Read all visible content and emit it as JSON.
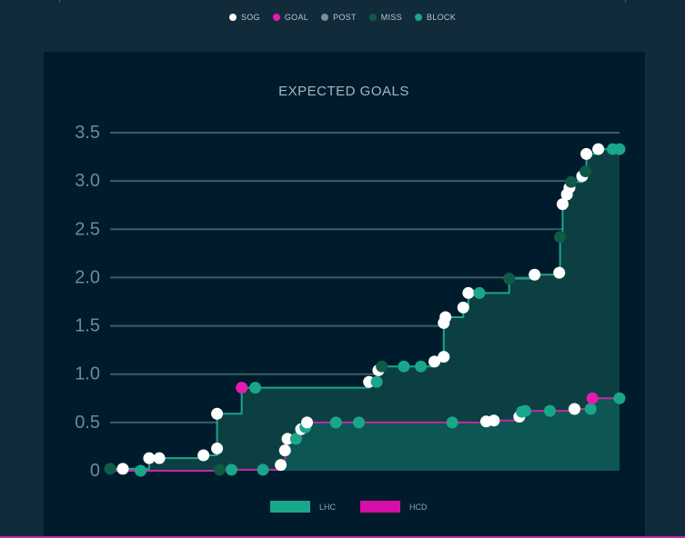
{
  "legend": {
    "items": [
      {
        "label": "SOG",
        "color": "#ffffff"
      },
      {
        "label": "GOAL",
        "color": "#e619b0"
      },
      {
        "label": "POST",
        "color": "#7a8f99"
      },
      {
        "label": "MISS",
        "color": "#0f5a46"
      },
      {
        "label": "BLOCK",
        "color": "#1aa68a"
      }
    ]
  },
  "chart_data": {
    "type": "line",
    "title": "EXPECTED GOALS",
    "xlabel": "",
    "ylabel": "",
    "xlim": [
      0,
      60
    ],
    "ylim": [
      0,
      3.5
    ],
    "yticks": [
      0,
      0.5,
      1.0,
      1.5,
      2.0,
      2.5,
      3.0,
      3.5
    ],
    "ytick_labels": [
      "0",
      "0.5",
      "1.0",
      "1.5",
      "2.0",
      "2.5",
      "3.0",
      "3.5"
    ],
    "grid": true,
    "series": [
      {
        "name": "LHC",
        "color": "#1aa68a",
        "fill": "#0c3f42",
        "points": [
          {
            "x": 0.0,
            "y": 0.02,
            "t": "MISS"
          },
          {
            "x": 1.5,
            "y": 0.02,
            "t": "SOG"
          },
          {
            "x": 4.6,
            "y": 0.13,
            "t": "SOG"
          },
          {
            "x": 5.8,
            "y": 0.13,
            "t": "SOG"
          },
          {
            "x": 11.0,
            "y": 0.16,
            "t": "SOG"
          },
          {
            "x": 12.6,
            "y": 0.23,
            "t": "SOG"
          },
          {
            "x": 12.6,
            "y": 0.59,
            "t": "SOG"
          },
          {
            "x": 15.5,
            "y": 0.86,
            "t": "GOAL"
          },
          {
            "x": 17.1,
            "y": 0.86,
            "t": "BLOCK"
          },
          {
            "x": 30.5,
            "y": 0.92,
            "t": "SOG"
          },
          {
            "x": 31.4,
            "y": 0.92,
            "t": "BLOCK"
          },
          {
            "x": 31.6,
            "y": 1.04,
            "t": "SOG"
          },
          {
            "x": 32.0,
            "y": 1.08,
            "t": "MISS"
          },
          {
            "x": 34.6,
            "y": 1.08,
            "t": "BLOCK"
          },
          {
            "x": 36.6,
            "y": 1.08,
            "t": "BLOCK"
          },
          {
            "x": 38.2,
            "y": 1.13,
            "t": "SOG"
          },
          {
            "x": 39.3,
            "y": 1.18,
            "t": "SOG"
          },
          {
            "x": 39.3,
            "y": 1.53,
            "t": "SOG"
          },
          {
            "x": 39.5,
            "y": 1.59,
            "t": "SOG"
          },
          {
            "x": 41.6,
            "y": 1.69,
            "t": "SOG"
          },
          {
            "x": 42.2,
            "y": 1.84,
            "t": "SOG"
          },
          {
            "x": 43.5,
            "y": 1.84,
            "t": "BLOCK"
          },
          {
            "x": 47.0,
            "y": 1.99,
            "t": "MISS"
          },
          {
            "x": 50.0,
            "y": 2.03,
            "t": "SOG"
          },
          {
            "x": 52.9,
            "y": 2.05,
            "t": "SOG"
          },
          {
            "x": 53.0,
            "y": 2.42,
            "t": "MISS"
          },
          {
            "x": 53.3,
            "y": 2.76,
            "t": "SOG"
          },
          {
            "x": 53.8,
            "y": 2.86,
            "t": "SOG"
          },
          {
            "x": 54.1,
            "y": 2.93,
            "t": "SOG"
          },
          {
            "x": 54.3,
            "y": 2.99,
            "t": "MISS"
          },
          {
            "x": 55.6,
            "y": 3.05,
            "t": "SOG"
          },
          {
            "x": 56.0,
            "y": 3.1,
            "t": "MISS"
          },
          {
            "x": 56.1,
            "y": 3.28,
            "t": "SOG"
          },
          {
            "x": 57.5,
            "y": 3.33,
            "t": "SOG"
          },
          {
            "x": 59.2,
            "y": 3.33,
            "t": "BLOCK"
          },
          {
            "x": 60.0,
            "y": 3.33,
            "t": "BLOCK"
          }
        ]
      },
      {
        "name": "HCD",
        "color": "#c12aa8",
        "fill": "#0d5b56",
        "points": [
          {
            "x": 3.6,
            "y": 0.0,
            "t": "BLOCK"
          },
          {
            "x": 12.9,
            "y": 0.01,
            "t": "MISS"
          },
          {
            "x": 14.3,
            "y": 0.01,
            "t": "BLOCK"
          },
          {
            "x": 18.0,
            "y": 0.01,
            "t": "BLOCK"
          },
          {
            "x": 20.1,
            "y": 0.06,
            "t": "SOG"
          },
          {
            "x": 20.6,
            "y": 0.21,
            "t": "SOG"
          },
          {
            "x": 20.9,
            "y": 0.33,
            "t": "SOG"
          },
          {
            "x": 21.9,
            "y": 0.33,
            "t": "BLOCK"
          },
          {
            "x": 22.5,
            "y": 0.43,
            "t": "SOG"
          },
          {
            "x": 23.0,
            "y": 0.45,
            "t": "BLOCK"
          },
          {
            "x": 23.2,
            "y": 0.5,
            "t": "SOG"
          },
          {
            "x": 26.6,
            "y": 0.5,
            "t": "BLOCK"
          },
          {
            "x": 29.3,
            "y": 0.5,
            "t": "BLOCK"
          },
          {
            "x": 40.3,
            "y": 0.5,
            "t": "BLOCK"
          },
          {
            "x": 44.3,
            "y": 0.51,
            "t": "SOG"
          },
          {
            "x": 45.2,
            "y": 0.52,
            "t": "SOG"
          },
          {
            "x": 48.2,
            "y": 0.56,
            "t": "SOG"
          },
          {
            "x": 48.5,
            "y": 0.61,
            "t": "BLOCK"
          },
          {
            "x": 48.9,
            "y": 0.62,
            "t": "BLOCK"
          },
          {
            "x": 51.8,
            "y": 0.62,
            "t": "BLOCK"
          },
          {
            "x": 54.7,
            "y": 0.64,
            "t": "SOG"
          },
          {
            "x": 56.6,
            "y": 0.64,
            "t": "BLOCK"
          },
          {
            "x": 56.8,
            "y": 0.75,
            "t": "GOAL"
          },
          {
            "x": 60.0,
            "y": 0.75,
            "t": "BLOCK"
          }
        ]
      }
    ]
  }
}
